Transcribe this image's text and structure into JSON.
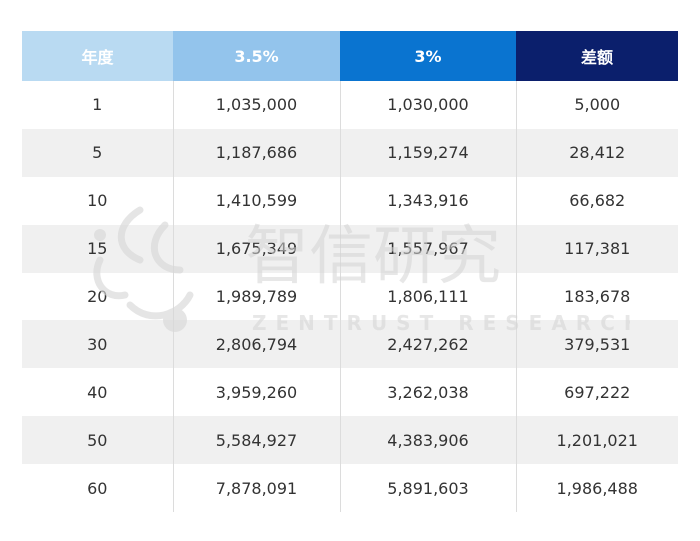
{
  "table": {
    "headers": [
      "年度",
      "3.5%",
      "3%",
      "差额"
    ],
    "rows": [
      [
        "1",
        "1,035,000",
        "1,030,000",
        "5,000"
      ],
      [
        "5",
        "1,187,686",
        "1,159,274",
        "28,412"
      ],
      [
        "10",
        "1,410,599",
        "1,343,916",
        "66,682"
      ],
      [
        "15",
        "1,675,349",
        "1,557,967",
        "117,381"
      ],
      [
        "20",
        "1,989,789",
        "1,806,111",
        "183,678"
      ],
      [
        "30",
        "2,806,794",
        "2,427,262",
        "379,531"
      ],
      [
        "40",
        "3,959,260",
        "3,262,038",
        "697,222"
      ],
      [
        "50",
        "5,584,927",
        "4,383,906",
        "1,201,021"
      ],
      [
        "60",
        "7,878,091",
        "5,891,603",
        "1,986,488"
      ]
    ]
  },
  "colors": {
    "header_year": "#b9daf2",
    "header_35": "#93c4ec",
    "header_3": "#0a74d0",
    "header_diff": "#0b1f6c",
    "row_alt": "#f0f0f0"
  },
  "watermark": {
    "title": "智信研究",
    "subtitle": "ZENTRUST RESEARCH"
  }
}
